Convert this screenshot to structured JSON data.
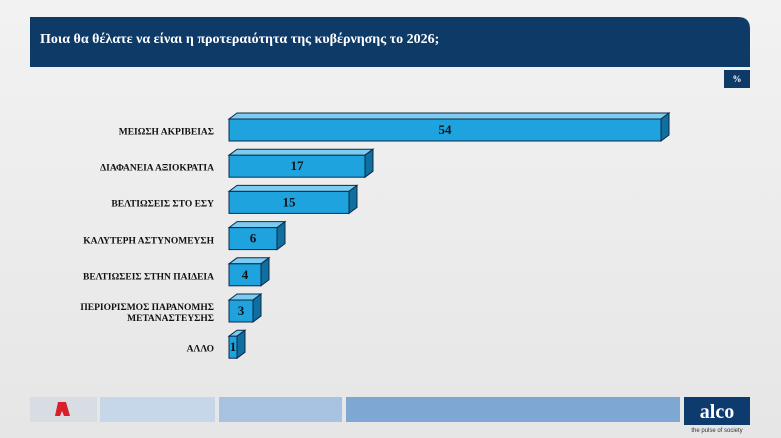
{
  "header": {
    "title": "Ποια θα θέλατε να είναι η προτεραιότητα της κυβέρνησης το 2026;"
  },
  "chart_data": {
    "type": "bar",
    "orientation": "horizontal",
    "unit": "%",
    "categories": [
      "ΜΕΙΩΣΗ ΑΚΡΙΒΕΙΑΣ",
      "ΔΙΑΦΑΝΕΙΑ ΑΞΙΟΚΡΑΤΙΑ",
      "ΒΕΛΤΙΩΣΕΙΣ ΣΤΟ ΕΣΥ",
      "ΚΑΛΥΤΕΡΗ ΑΣΤΥΝΟΜΕΥΣΗ",
      "ΒΕΛΤΙΩΣΕΙΣ ΣΤΗΝ ΠΑΙΔΕΙΑ",
      "ΠΕΡΙΟΡΙΣΜΟΣ ΠΑΡΑΝΟΜΗΣ ΜΕΤΑΝΑΣΤΕΥΣΗΣ",
      "ΑΛΛΟ"
    ],
    "values": [
      54,
      17,
      15,
      6,
      4,
      3,
      1
    ],
    "color": "#1fa3df"
  },
  "footer": {
    "brand": "alco",
    "tagline": "the pulse of society"
  }
}
